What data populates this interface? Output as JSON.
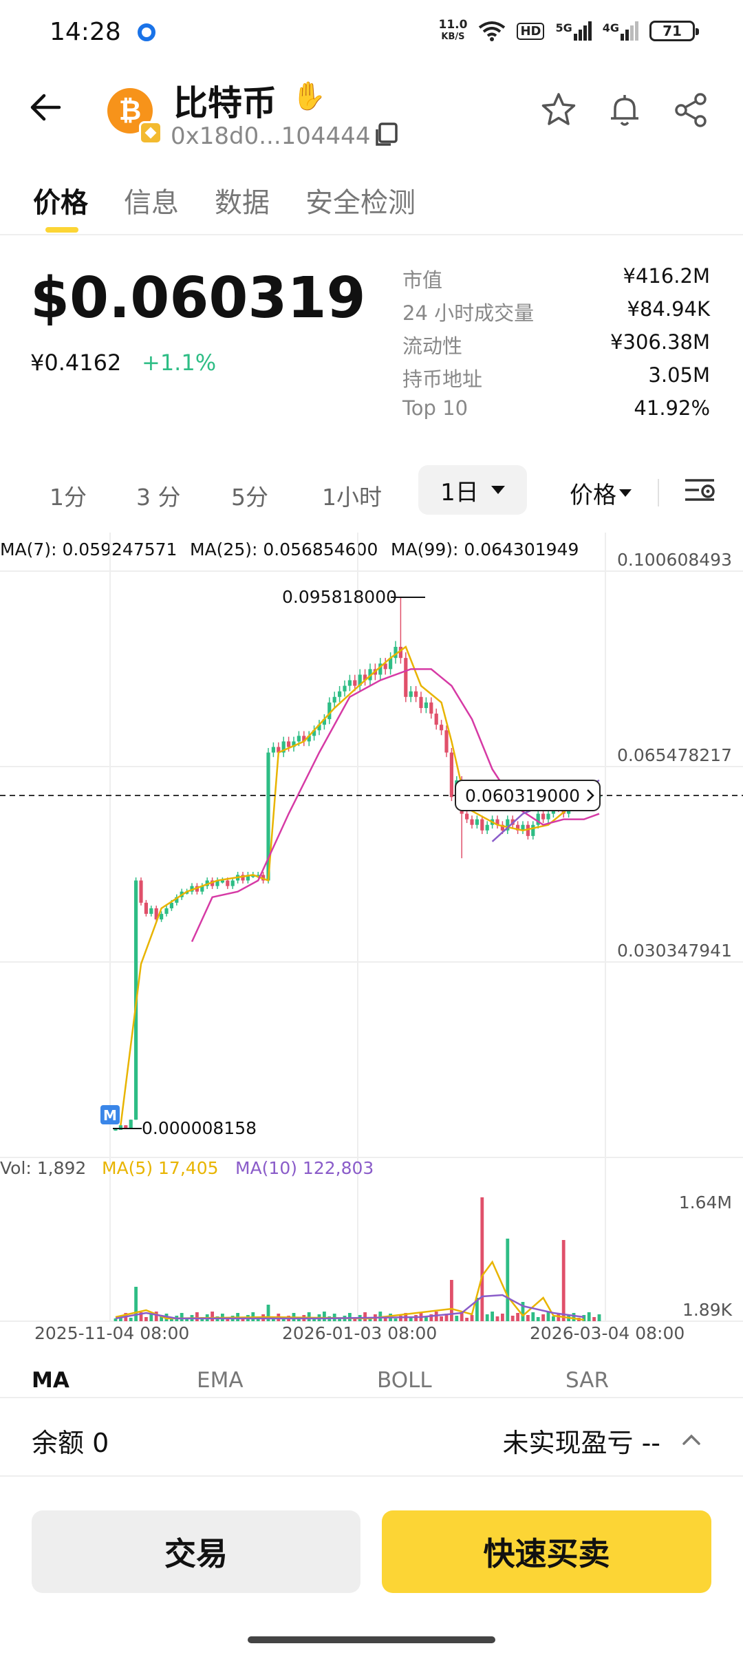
{
  "status_bar": {
    "time": "14:28",
    "net_speed_value": "11.0",
    "net_speed_unit": "KB/S",
    "hd": "HD",
    "signal_5g": "5G",
    "signal_4g": "4G",
    "battery": "71"
  },
  "header": {
    "coin_name": "比特币",
    "coin_symbol_glyph": "₿",
    "address": "0x18d0...104444"
  },
  "tabs": [
    "价格",
    "信息",
    "数据",
    "安全检测"
  ],
  "price": {
    "usd": "$0.060319",
    "cny": "¥0.4162",
    "change": "+1.1%"
  },
  "stats": [
    {
      "label": "市值",
      "value": "¥416.2M"
    },
    {
      "label": "24 小时成交量",
      "value": "¥84.94K"
    },
    {
      "label": "流动性",
      "value": "¥306.38M"
    },
    {
      "label": "持币地址",
      "value": "3.05M"
    },
    {
      "label": "Top 10",
      "value": "41.92%"
    }
  ],
  "intervals": [
    "1分",
    "3 分",
    "5分",
    "1小时"
  ],
  "interval_selected": "1日",
  "price_dropdown": "价格",
  "chart_data": {
    "type": "candlestick",
    "ma_legend": [
      {
        "label": "MA(7): 0.059247571",
        "color": "#e8b400"
      },
      {
        "label": "MA(25): 0.056854600",
        "color": "#d63aa5"
      },
      {
        "label": "MA(99): 0.064301949",
        "color": "#8a5cc9"
      }
    ],
    "y_axis_labels": [
      "0.100608493",
      "0.065478217",
      "0.030347941"
    ],
    "high_label": "0.095818000",
    "low_label": "0.000008158",
    "current_price_label": "0.060319000",
    "x_labels": [
      "2025-11-04 08:00",
      "2026-01-03 08:00",
      "2026-03-04 08:00"
    ],
    "marker": "M",
    "closes": [
      8e-06,
      0.001,
      0.0005,
      0.002,
      0.045,
      0.041,
      0.039,
      0.04,
      0.038,
      0.039,
      0.04,
      0.041,
      0.042,
      0.043,
      0.043,
      0.044,
      0.043,
      0.044,
      0.045,
      0.044,
      0.045,
      0.045,
      0.044,
      0.045,
      0.046,
      0.045,
      0.046,
      0.046,
      0.046,
      0.045,
      0.068,
      0.069,
      0.068,
      0.07,
      0.069,
      0.07,
      0.071,
      0.07,
      0.071,
      0.072,
      0.073,
      0.074,
      0.077,
      0.078,
      0.079,
      0.08,
      0.081,
      0.08,
      0.082,
      0.081,
      0.083,
      0.082,
      0.084,
      0.083,
      0.085,
      0.087,
      0.085,
      0.078,
      0.079,
      0.078,
      0.076,
      0.077,
      0.075,
      0.073,
      0.072,
      0.068,
      0.06,
      0.063,
      0.057,
      0.056,
      0.055,
      0.056,
      0.054,
      0.055,
      0.056,
      0.055,
      0.054,
      0.056,
      0.055,
      0.054,
      0.055,
      0.053,
      0.055,
      0.057,
      0.056,
      0.057,
      0.059,
      0.058,
      0.057,
      0.059,
      0.06,
      0.059,
      0.06,
      0.061,
      0.06,
      0.0603
    ],
    "ma7_points": [
      [
        0.001,
        1
      ],
      [
        0.03,
        5
      ],
      [
        0.04,
        9
      ],
      [
        0.043,
        14
      ],
      [
        0.045,
        20
      ],
      [
        0.046,
        27
      ],
      [
        0.045,
        30
      ],
      [
        0.068,
        32
      ],
      [
        0.07,
        37
      ],
      [
        0.076,
        43
      ],
      [
        0.081,
        49
      ],
      [
        0.085,
        54
      ],
      [
        0.087,
        57
      ],
      [
        0.08,
        60
      ],
      [
        0.077,
        64
      ],
      [
        0.07,
        66
      ],
      [
        0.058,
        69
      ],
      [
        0.055,
        75
      ],
      [
        0.054,
        80
      ],
      [
        0.055,
        85
      ],
      [
        0.058,
        89
      ],
      [
        0.059,
        95
      ]
    ],
    "ma25_points": [
      [
        0.034,
        15
      ],
      [
        0.042,
        19
      ],
      [
        0.043,
        24
      ],
      [
        0.045,
        28
      ],
      [
        0.057,
        34
      ],
      [
        0.068,
        40
      ],
      [
        0.078,
        46
      ],
      [
        0.081,
        52
      ],
      [
        0.083,
        58
      ],
      [
        0.083,
        62
      ],
      [
        0.08,
        66
      ],
      [
        0.074,
        70
      ],
      [
        0.065,
        74
      ],
      [
        0.058,
        79
      ],
      [
        0.055,
        84
      ],
      [
        0.056,
        88
      ],
      [
        0.056,
        92
      ],
      [
        0.057,
        95
      ]
    ],
    "ma99_points": [
      [
        0.052,
        74
      ],
      [
        0.057,
        80
      ],
      [
        0.06,
        88
      ],
      [
        0.063,
        95
      ]
    ],
    "volume_legend": [
      {
        "label": "Vol: 1,892",
        "color": "#555555"
      },
      {
        "label": "MA(5) 17,405",
        "color": "#e8b400"
      },
      {
        "label": "MA(10) 122,803",
        "color": "#8a5cc9"
      }
    ],
    "volume_axis_labels": [
      "1.64M",
      "1.89K"
    ]
  },
  "indicators": [
    "MA",
    "EMA",
    "BOLL",
    "SAR"
  ],
  "balance": {
    "label": "余额 0",
    "pnl": "未实现盈亏 --"
  },
  "buttons": {
    "trade": "交易",
    "quick": "快速买卖"
  },
  "colors": {
    "accent": "#fcd535",
    "up": "#2ebd85",
    "down": "#e0506a"
  }
}
